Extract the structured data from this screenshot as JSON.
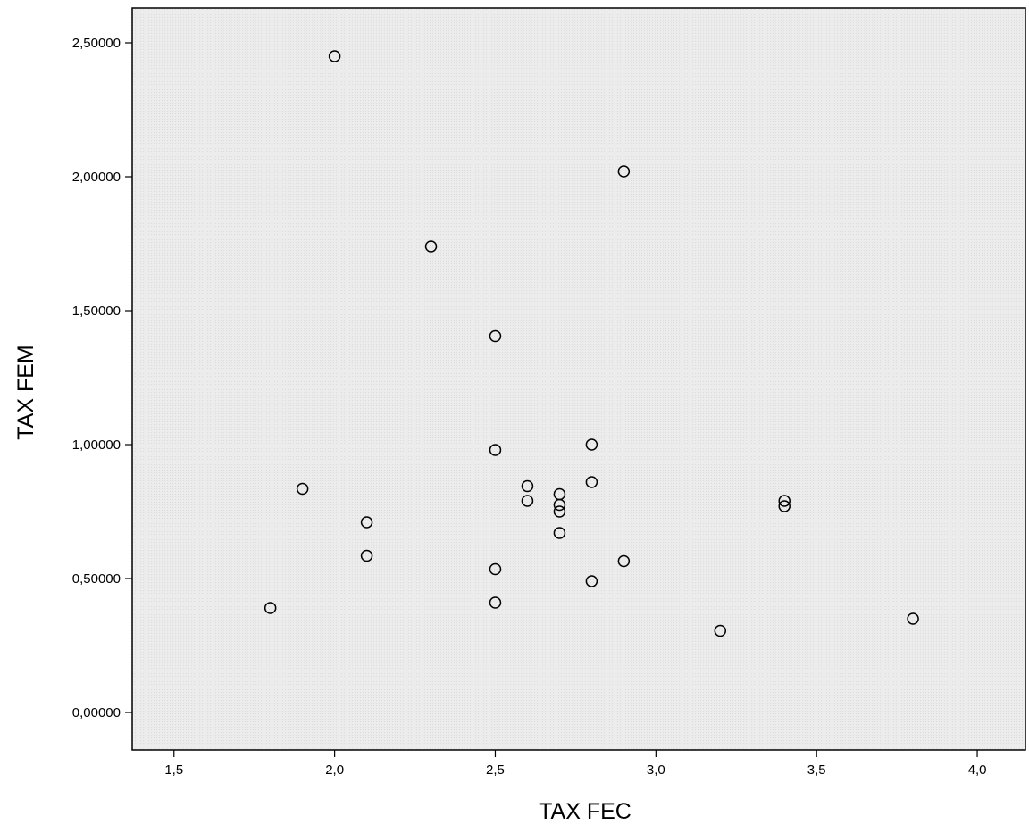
{
  "chart_data": {
    "type": "scatter",
    "title": "",
    "xlabel": "TAX FEC",
    "ylabel": "TAX FEM",
    "xlim": [
      1.37,
      4.15
    ],
    "ylim": [
      -0.14,
      2.63
    ],
    "xticks": [
      1.5,
      2.0,
      2.5,
      3.0,
      3.5,
      4.0
    ],
    "xtick_labels": [
      "1,5",
      "2,0",
      "2,5",
      "3,0",
      "3,5",
      "4,0"
    ],
    "yticks": [
      0.0,
      0.5,
      1.0,
      1.5,
      2.0,
      2.5
    ],
    "ytick_labels": [
      "0,00000",
      "0,50000",
      "1,00000",
      "1,50000",
      "2,00000",
      "2,50000"
    ],
    "grid": false,
    "legend": "none",
    "marker": "open-circle",
    "colors": {
      "plot_background": "#ececec",
      "marker": "#000000",
      "axis": "#000000"
    },
    "points": [
      {
        "x": 2.0,
        "y": 2.45
      },
      {
        "x": 2.9,
        "y": 2.02
      },
      {
        "x": 2.3,
        "y": 1.74
      },
      {
        "x": 2.5,
        "y": 1.405
      },
      {
        "x": 2.5,
        "y": 0.98
      },
      {
        "x": 2.8,
        "y": 1.0
      },
      {
        "x": 2.8,
        "y": 0.86
      },
      {
        "x": 2.6,
        "y": 0.845
      },
      {
        "x": 2.6,
        "y": 0.79
      },
      {
        "x": 2.7,
        "y": 0.815
      },
      {
        "x": 2.7,
        "y": 0.775
      },
      {
        "x": 2.7,
        "y": 0.75
      },
      {
        "x": 2.7,
        "y": 0.67
      },
      {
        "x": 1.9,
        "y": 0.835
      },
      {
        "x": 2.1,
        "y": 0.71
      },
      {
        "x": 2.1,
        "y": 0.585
      },
      {
        "x": 3.4,
        "y": 0.79
      },
      {
        "x": 3.4,
        "y": 0.77
      },
      {
        "x": 2.5,
        "y": 0.535
      },
      {
        "x": 2.9,
        "y": 0.565
      },
      {
        "x": 2.8,
        "y": 0.49
      },
      {
        "x": 2.5,
        "y": 0.41
      },
      {
        "x": 1.8,
        "y": 0.39
      },
      {
        "x": 3.8,
        "y": 0.35
      },
      {
        "x": 3.2,
        "y": 0.305
      }
    ]
  }
}
